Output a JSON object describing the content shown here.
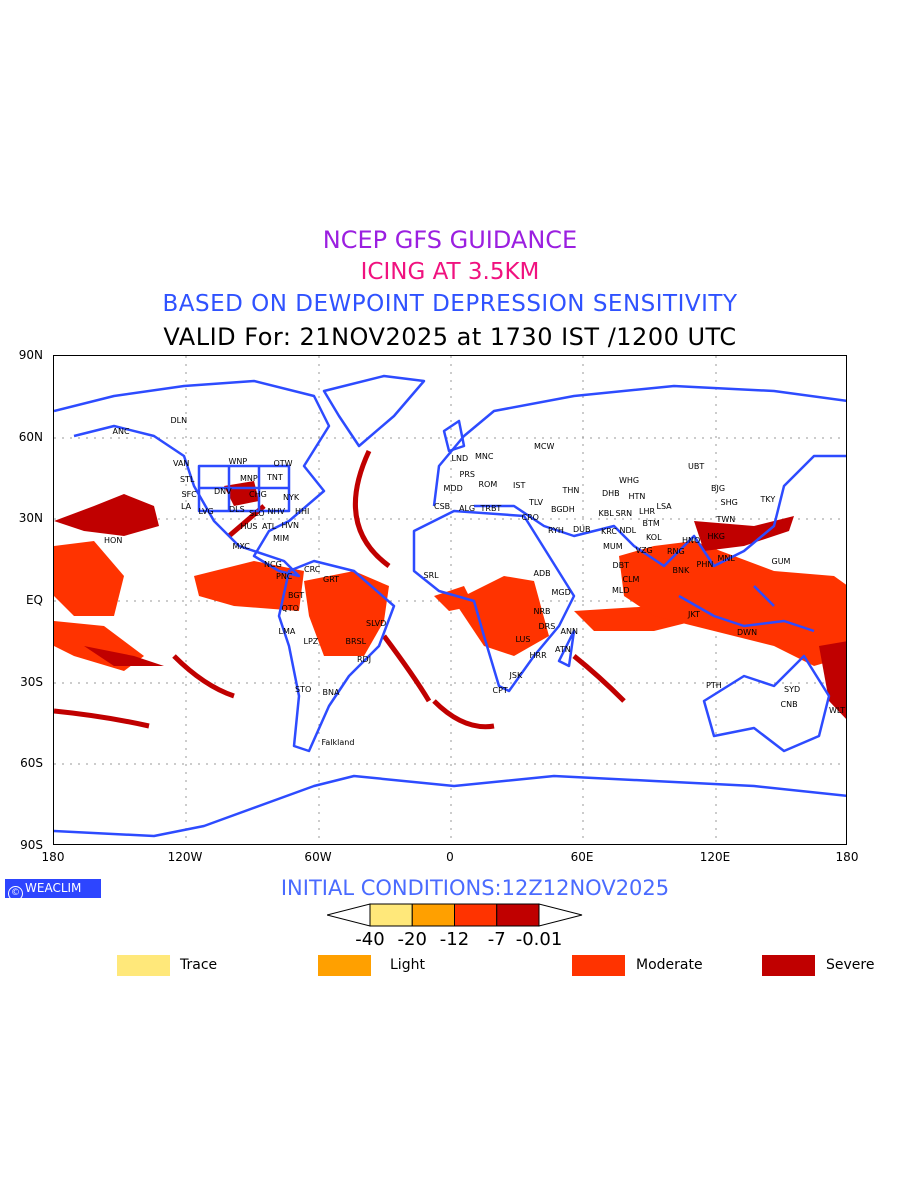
{
  "header": {
    "line1": "NCEP GFS GUIDANCE",
    "line2": "ICING AT 3.5KM",
    "line3": "BASED ON DEWPOINT DEPRESSION SENSITIVITY",
    "line4": "VALID For: 21NOV2025 at 1730 IST /1200 UTC"
  },
  "axes": {
    "lat_labels": [
      "90N",
      "60N",
      "30N",
      "EQ",
      "30S",
      "60S",
      "90S"
    ],
    "lon_labels": [
      "180",
      "120W",
      "60W",
      "0",
      "60E",
      "120E",
      "180"
    ]
  },
  "cities": [
    "ANC",
    "DLN",
    "VAN",
    "STL",
    "WNP",
    "MNP",
    "CHG",
    "TNT",
    "OTW",
    "NYK",
    "DNV",
    "SLO",
    "SFC",
    "LVG",
    "LA",
    "NHV",
    "ATL",
    "HHI",
    "DLS",
    "HUS",
    "MIM",
    "HVN",
    "MXC",
    "HON",
    "NCG",
    "CRC",
    "PNC",
    "GRT",
    "BGT",
    "QTO",
    "LMA",
    "LPZ",
    "BRSL",
    "SLVD",
    "RDJ",
    "STO",
    "BNA",
    "Falkland",
    "LND",
    "PRS",
    "MNC",
    "MDD",
    "ROM",
    "ALG",
    "CSB",
    "TRBT",
    "IST",
    "MCW",
    "CRO",
    "TLV",
    "BGDH",
    "THN",
    "RYH",
    "DUB",
    "KRC",
    "SRL",
    "ADB",
    "MGD",
    "NRB",
    "DRS",
    "ANN",
    "LUS",
    "HRR",
    "ATN",
    "JSK",
    "CPT",
    "DHB",
    "WHG",
    "HTN",
    "KBL",
    "SRN",
    "LHR",
    "NDL",
    "BTM",
    "LSA",
    "MUM",
    "VZG",
    "KOL",
    "RNG",
    "BNK",
    "HNO",
    "PHN",
    "HKG",
    "TWN",
    "SHG",
    "BJG",
    "UBT",
    "TKY",
    "MNL",
    "GUM",
    "DBT",
    "CLM",
    "MLD",
    "JKT",
    "DWN",
    "PTH",
    "SYD",
    "CNB",
    "WLT"
  ],
  "footer": {
    "logo": "WEACLIM",
    "logo_symbol": "©",
    "initial_conditions": "INITIAL CONDITIONS:12Z12NOV2025"
  },
  "colorbar": {
    "colors": [
      "#ffe87a",
      "#ffa000",
      "#ff3300",
      "#c00000"
    ],
    "labels": [
      "-40",
      "-20",
      "-12",
      "-7",
      "-0.01"
    ]
  },
  "legend": [
    {
      "label": "Trace",
      "color": "#ffe87a"
    },
    {
      "label": "Light",
      "color": "#ffa000"
    },
    {
      "label": "Moderate",
      "color": "#ff3300"
    },
    {
      "label": "Severe",
      "color": "#c00000"
    }
  ],
  "colors": {
    "coast": "#2d4bff",
    "moderate": "#ff3300",
    "severe": "#c00000"
  }
}
